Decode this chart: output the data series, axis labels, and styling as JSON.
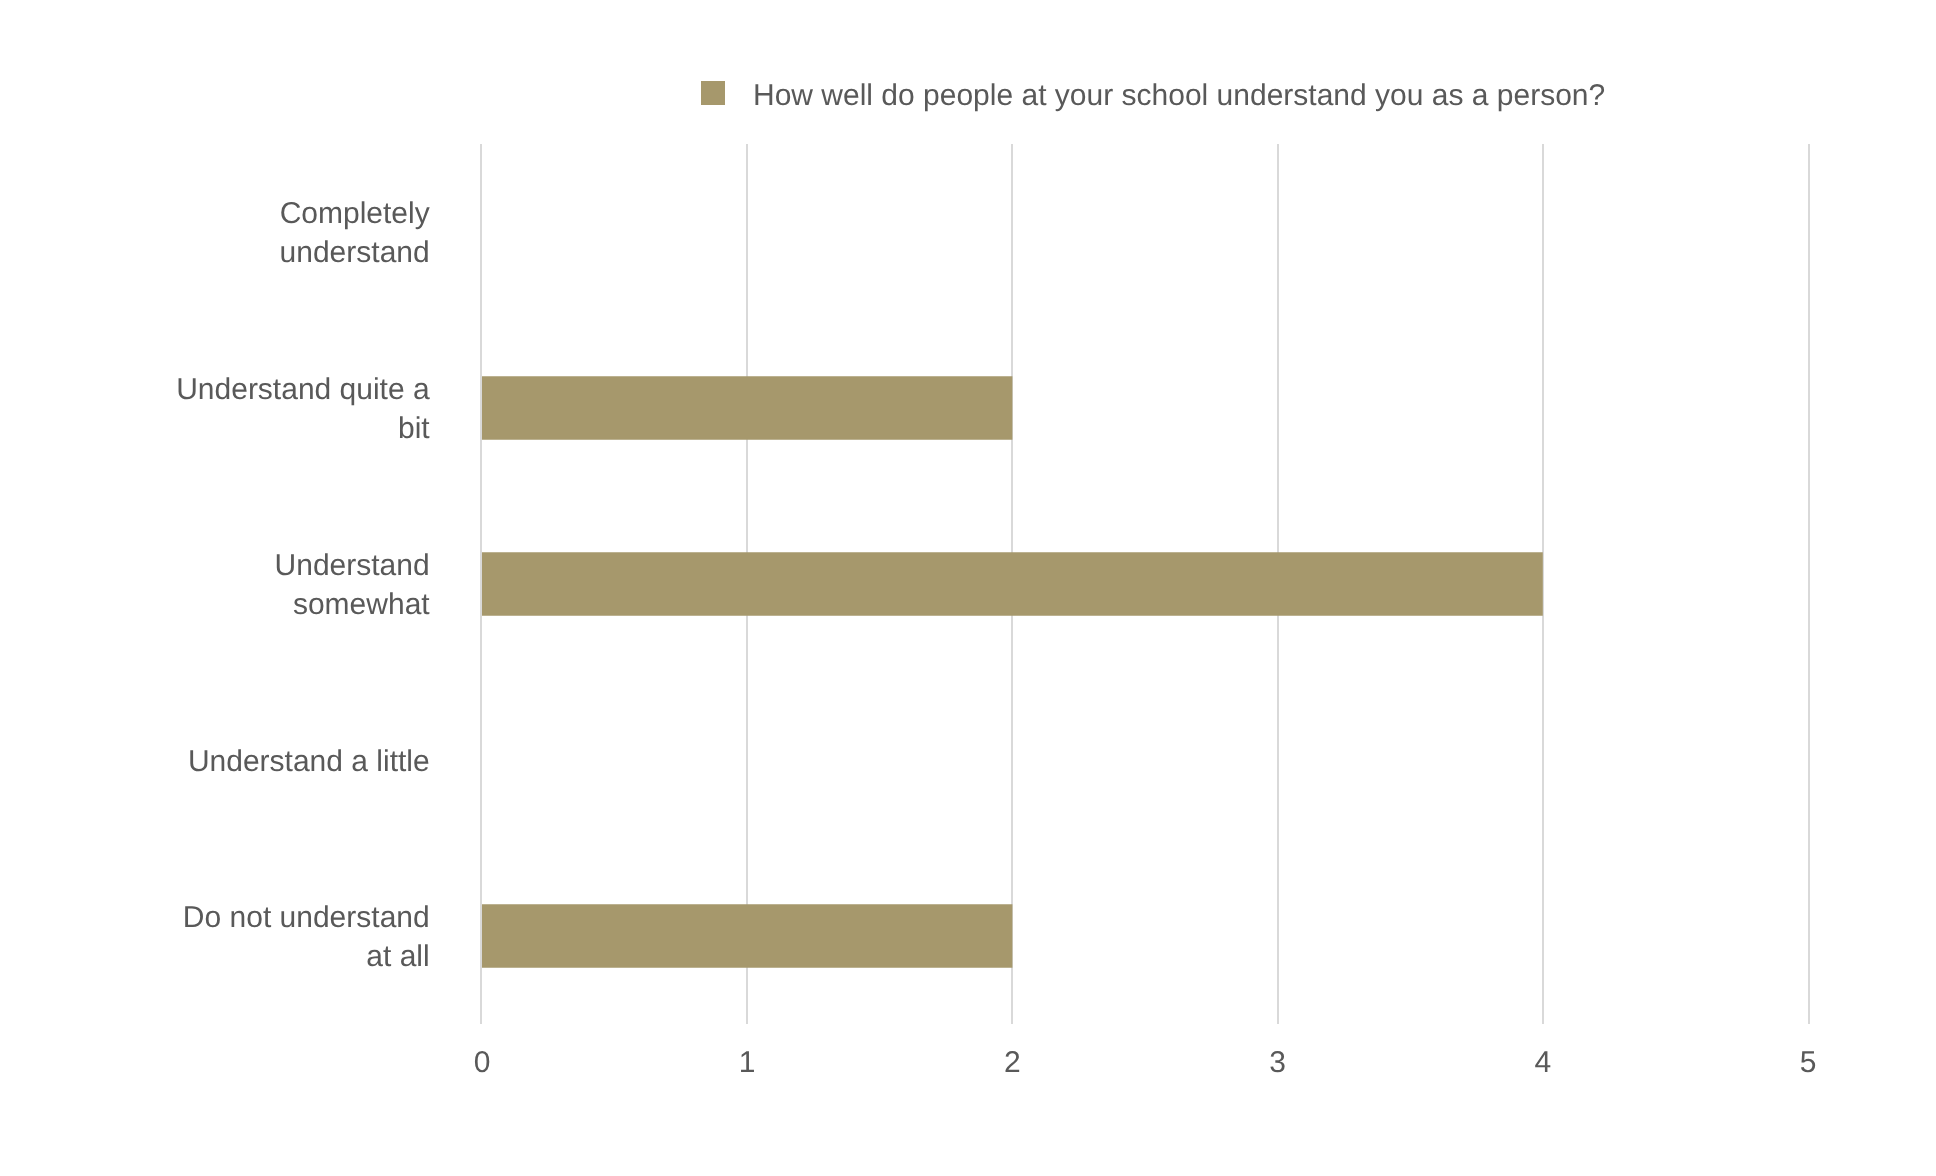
{
  "chart_data": {
    "type": "bar",
    "orientation": "horizontal",
    "categories": [
      "Completely\nunderstand",
      "Understand quite a\nbit",
      "Understand\nsomewhat",
      "Understand a little",
      "Do not understand\nat all"
    ],
    "series": [
      {
        "name": "How well do people at your school understand you as a person?",
        "color": "#a6986c",
        "values": [
          0,
          2,
          4,
          0,
          2
        ]
      }
    ],
    "xlim": [
      0,
      5
    ],
    "xticks": [
      0,
      1,
      2,
      3,
      4,
      5
    ],
    "grid": "x",
    "legend": "top"
  }
}
